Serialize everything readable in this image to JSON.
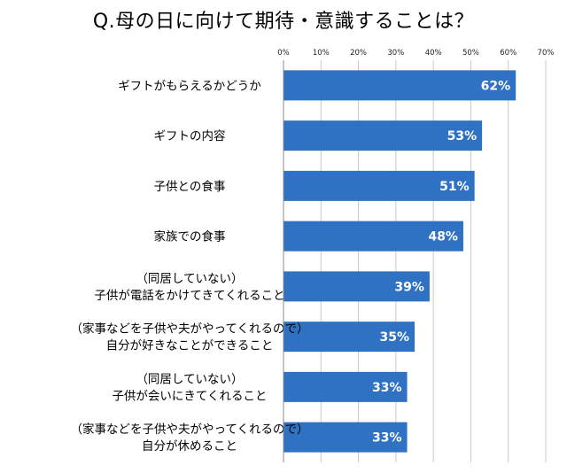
{
  "chart_data": {
    "type": "bar",
    "orientation": "horizontal",
    "title": "Q.母の日に向けて期待・意識することは？",
    "xlim": [
      0,
      70
    ],
    "tick_values": [
      0,
      10,
      20,
      30,
      40,
      50,
      60,
      70
    ],
    "tick_labels": [
      "0%",
      "10%",
      "20%",
      "30%",
      "40%",
      "50%",
      "60%",
      "70%"
    ],
    "grid": true,
    "bar_color": "#2f72c4",
    "categories": [
      [
        "ギフトがもらえるかどうか"
      ],
      [
        "ギフトの内容"
      ],
      [
        "子供との食事"
      ],
      [
        "家族での食事"
      ],
      [
        "（同居していない）",
        "子供が電話をかけてきてくれること"
      ],
      [
        "（家事などを子供や夫がやってくれるので）",
        "自分が好きなことができること"
      ],
      [
        "（同居していない）",
        "子供が会いにきてくれること"
      ],
      [
        "（家事などを子供や夫がやってくれるので）",
        "自分が休めること"
      ]
    ],
    "values": [
      62,
      53,
      51,
      48,
      39,
      35,
      33,
      33
    ],
    "value_labels": [
      "62%",
      "53%",
      "51%",
      "48%",
      "39%",
      "35%",
      "33%",
      "33%"
    ]
  }
}
